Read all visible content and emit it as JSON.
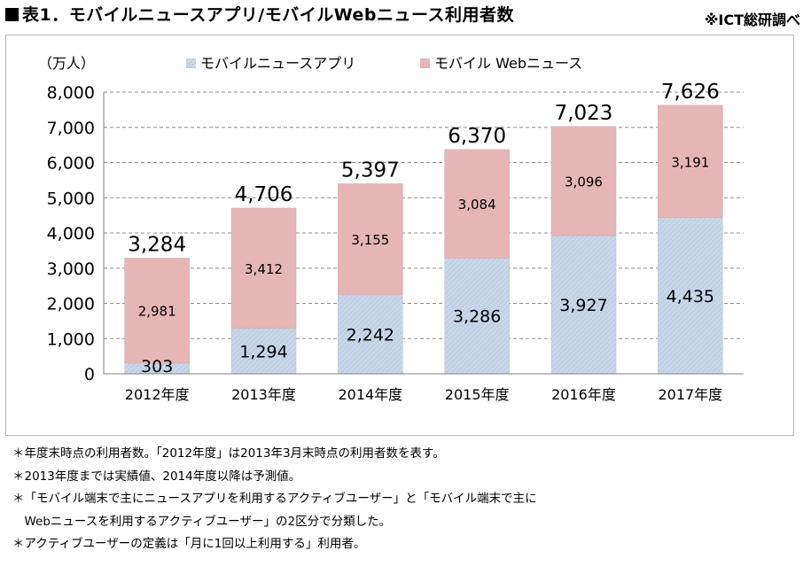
{
  "header": {
    "title": "表1．モバイルニュースアプリ/モバイルWebニュース利用者数",
    "source": "※ICT総研調べ"
  },
  "chart_data": {
    "type": "bar",
    "stacked": true,
    "unit_label": "（万人）",
    "categories": [
      "2012年度",
      "2013年度",
      "2014年度",
      "2015年度",
      "2016年度",
      "2017年度"
    ],
    "series": [
      {
        "name": "モバイルニュースアプリ",
        "values": [
          303,
          1294,
          2242,
          3286,
          3927,
          4435
        ],
        "color": "#c9d7e8",
        "labels": [
          "303",
          "1,294",
          "2,242",
          "3,286",
          "3,927",
          "4,435"
        ]
      },
      {
        "name": "モバイル Webニュース",
        "values": [
          2981,
          3412,
          3155,
          3084,
          3096,
          3191
        ],
        "color": "#e6b6b7",
        "labels": [
          "2,981",
          "3,412",
          "3,155",
          "3,084",
          "3,096",
          "3,191"
        ]
      }
    ],
    "totals": [
      "3,284",
      "4,706",
      "5,397",
      "6,370",
      "7,023",
      "7,626"
    ],
    "ylim": [
      0,
      8000
    ],
    "yticks": [
      0,
      1000,
      2000,
      3000,
      4000,
      5000,
      6000,
      7000,
      8000
    ],
    "ytick_labels": [
      "0",
      "1,000",
      "2,000",
      "3,000",
      "4,000",
      "5,000",
      "6,000",
      "7,000",
      "8,000"
    ],
    "grid": true,
    "legend_position": "top"
  },
  "notes": [
    "＊年度末時点の利用者数。「2012年度」は2013年3月末時点の利用者数を表す。",
    "＊2013年度までは実績値、2014年度以降は予測値。",
    "＊「モバイル端末で主にニュースアプリを利用するアクティブユーザー」と「モバイル端末で主に",
    "　Webニュースを利用するアクティブユーザー」の2区分で分類した。",
    "＊アクティブユーザーの定義は「月に1回以上利用する」利用者。"
  ]
}
